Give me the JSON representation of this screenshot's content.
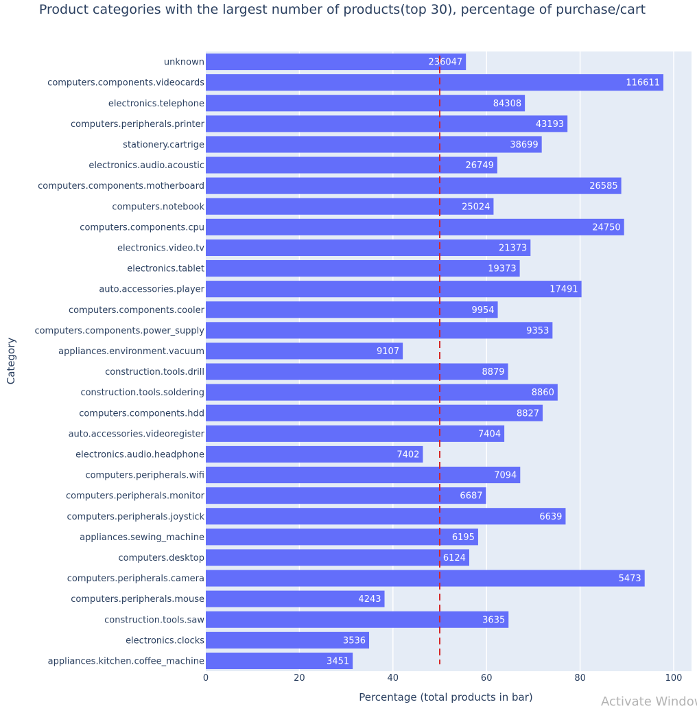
{
  "chart_data": {
    "type": "bar",
    "orientation": "horizontal",
    "title": "Product categories with the largest number of products(top 30), percentage of purchase/cart",
    "xlabel": "Percentage (total products in bar)",
    "ylabel": "Category",
    "xlim": [
      0,
      100
    ],
    "x_ticks": [
      0,
      20,
      40,
      60,
      80,
      100
    ],
    "grid": true,
    "reference_line": {
      "x": 50,
      "style": "dashed",
      "color": "#d62728"
    },
    "bar_color": "#636efa",
    "plot_background": "#e5ecf6",
    "categories": [
      "unknown",
      "computers.components.videocards",
      "electronics.telephone",
      "computers.peripherals.printer",
      "stationery.cartrige",
      "electronics.audio.acoustic",
      "computers.components.motherboard",
      "computers.notebook",
      "computers.components.cpu",
      "electronics.video.tv",
      "electronics.tablet",
      "auto.accessories.player",
      "computers.components.cooler",
      "computers.components.power_supply",
      "appliances.environment.vacuum",
      "construction.tools.drill",
      "construction.tools.soldering",
      "computers.components.hdd",
      "auto.accessories.videoregister",
      "electronics.audio.headphone",
      "computers.peripherals.wifi",
      "computers.peripherals.monitor",
      "computers.peripherals.joystick",
      "appliances.sewing_machine",
      "computers.desktop",
      "computers.peripherals.camera",
      "computers.peripherals.mouse",
      "construction.tools.saw",
      "electronics.clocks",
      "appliances.kitchen.coffee_machine"
    ],
    "values": [
      55.6,
      97.8,
      68.2,
      77.3,
      71.8,
      62.3,
      88.8,
      61.5,
      89.4,
      69.4,
      67.1,
      80.3,
      62.4,
      74.1,
      42.1,
      64.6,
      75.2,
      72.0,
      63.8,
      46.4,
      67.2,
      59.9,
      76.9,
      58.2,
      56.3,
      93.8,
      38.2,
      64.7,
      34.9,
      31.4
    ],
    "bar_labels": [
      "236047",
      "116611",
      "84308",
      "43193",
      "38699",
      "26749",
      "26585",
      "25024",
      "24750",
      "21373",
      "19373",
      "17491",
      "9954",
      "9353",
      "9107",
      "8879",
      "8860",
      "8827",
      "7404",
      "7402",
      "7094",
      "6687",
      "6639",
      "6195",
      "6124",
      "5473",
      "4243",
      "3635",
      "3536",
      "3451"
    ]
  },
  "watermark": "Activate Windows"
}
